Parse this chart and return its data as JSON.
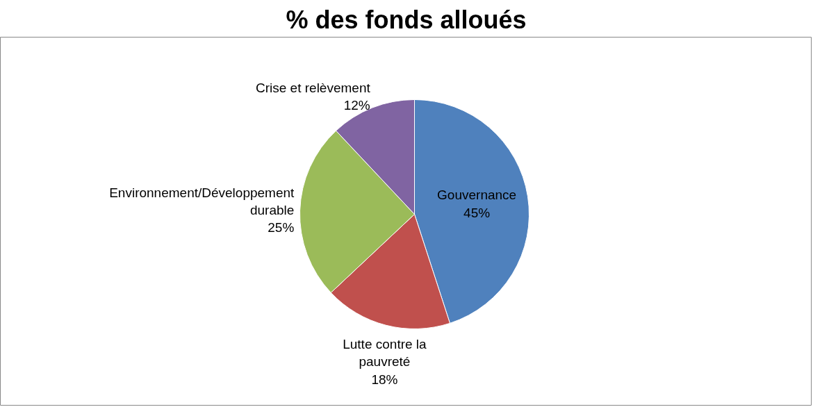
{
  "chart_data": {
    "type": "pie",
    "title": "% des fonds alloués",
    "categories": [
      "Gouvernance",
      "Lutte contre la pauvreté",
      "Environnement/Développement durable",
      "Crise et relèvement"
    ],
    "values": [
      45,
      18,
      25,
      12
    ],
    "value_labels": [
      "45%",
      "18%",
      "25%",
      "12%"
    ],
    "colors": [
      "#4f81bd",
      "#c0504d",
      "#9bbb59",
      "#8064a2"
    ]
  }
}
